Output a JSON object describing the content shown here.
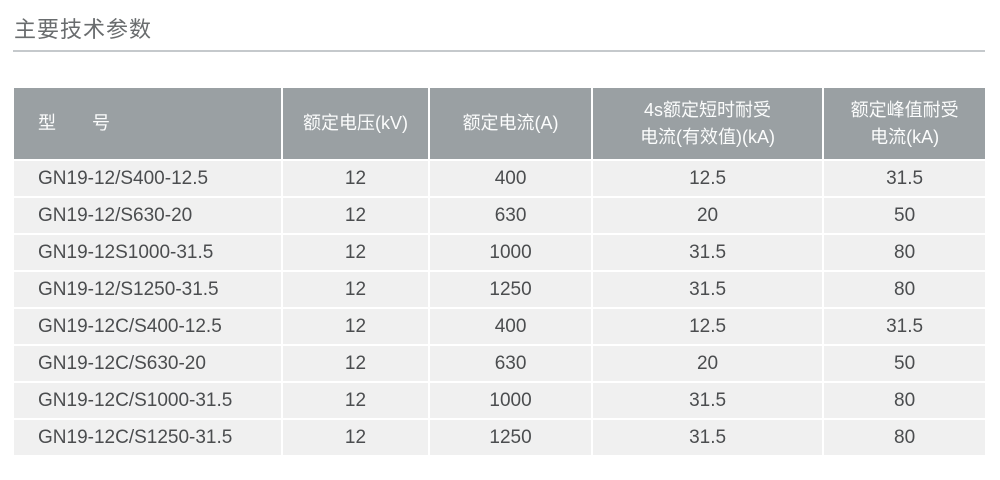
{
  "page": {
    "title": "主要技术参数"
  },
  "colors": {
    "header_bg": "#9aa0a3",
    "header_text": "#fbfcfc",
    "row_bg": "#f0f0f0",
    "cell_text": "#4b4d4f",
    "title_text": "#696c6e",
    "title_underline": "#c5c9cc",
    "page_bg": "#ffffff"
  },
  "table": {
    "columns": [
      {
        "label": "型　　号"
      },
      {
        "label": "额定电压(kV)"
      },
      {
        "label": "额定电流(A)"
      },
      {
        "label": "4s额定短时耐受\n电流(有效值)(kA)"
      },
      {
        "label": "额定峰值耐受\n电流(kA)"
      }
    ],
    "rows": [
      [
        "GN19-12/S400-12.5",
        "12",
        "400",
        "12.5",
        "31.5"
      ],
      [
        "GN19-12/S630-20",
        "12",
        "630",
        "20",
        "50"
      ],
      [
        "GN19-12S1000-31.5",
        "12",
        "1000",
        "31.5",
        "80"
      ],
      [
        "GN19-12/S1250-31.5",
        "12",
        "1250",
        "31.5",
        "80"
      ],
      [
        "GN19-12C/S400-12.5",
        "12",
        "400",
        "12.5",
        "31.5"
      ],
      [
        "GN19-12C/S630-20",
        "12",
        "630",
        "20",
        "50"
      ],
      [
        "GN19-12C/S1000-31.5",
        "12",
        "1000",
        "31.5",
        "80"
      ],
      [
        "GN19-12C/S1250-31.5",
        "12",
        "1250",
        "31.5",
        "80"
      ]
    ]
  }
}
